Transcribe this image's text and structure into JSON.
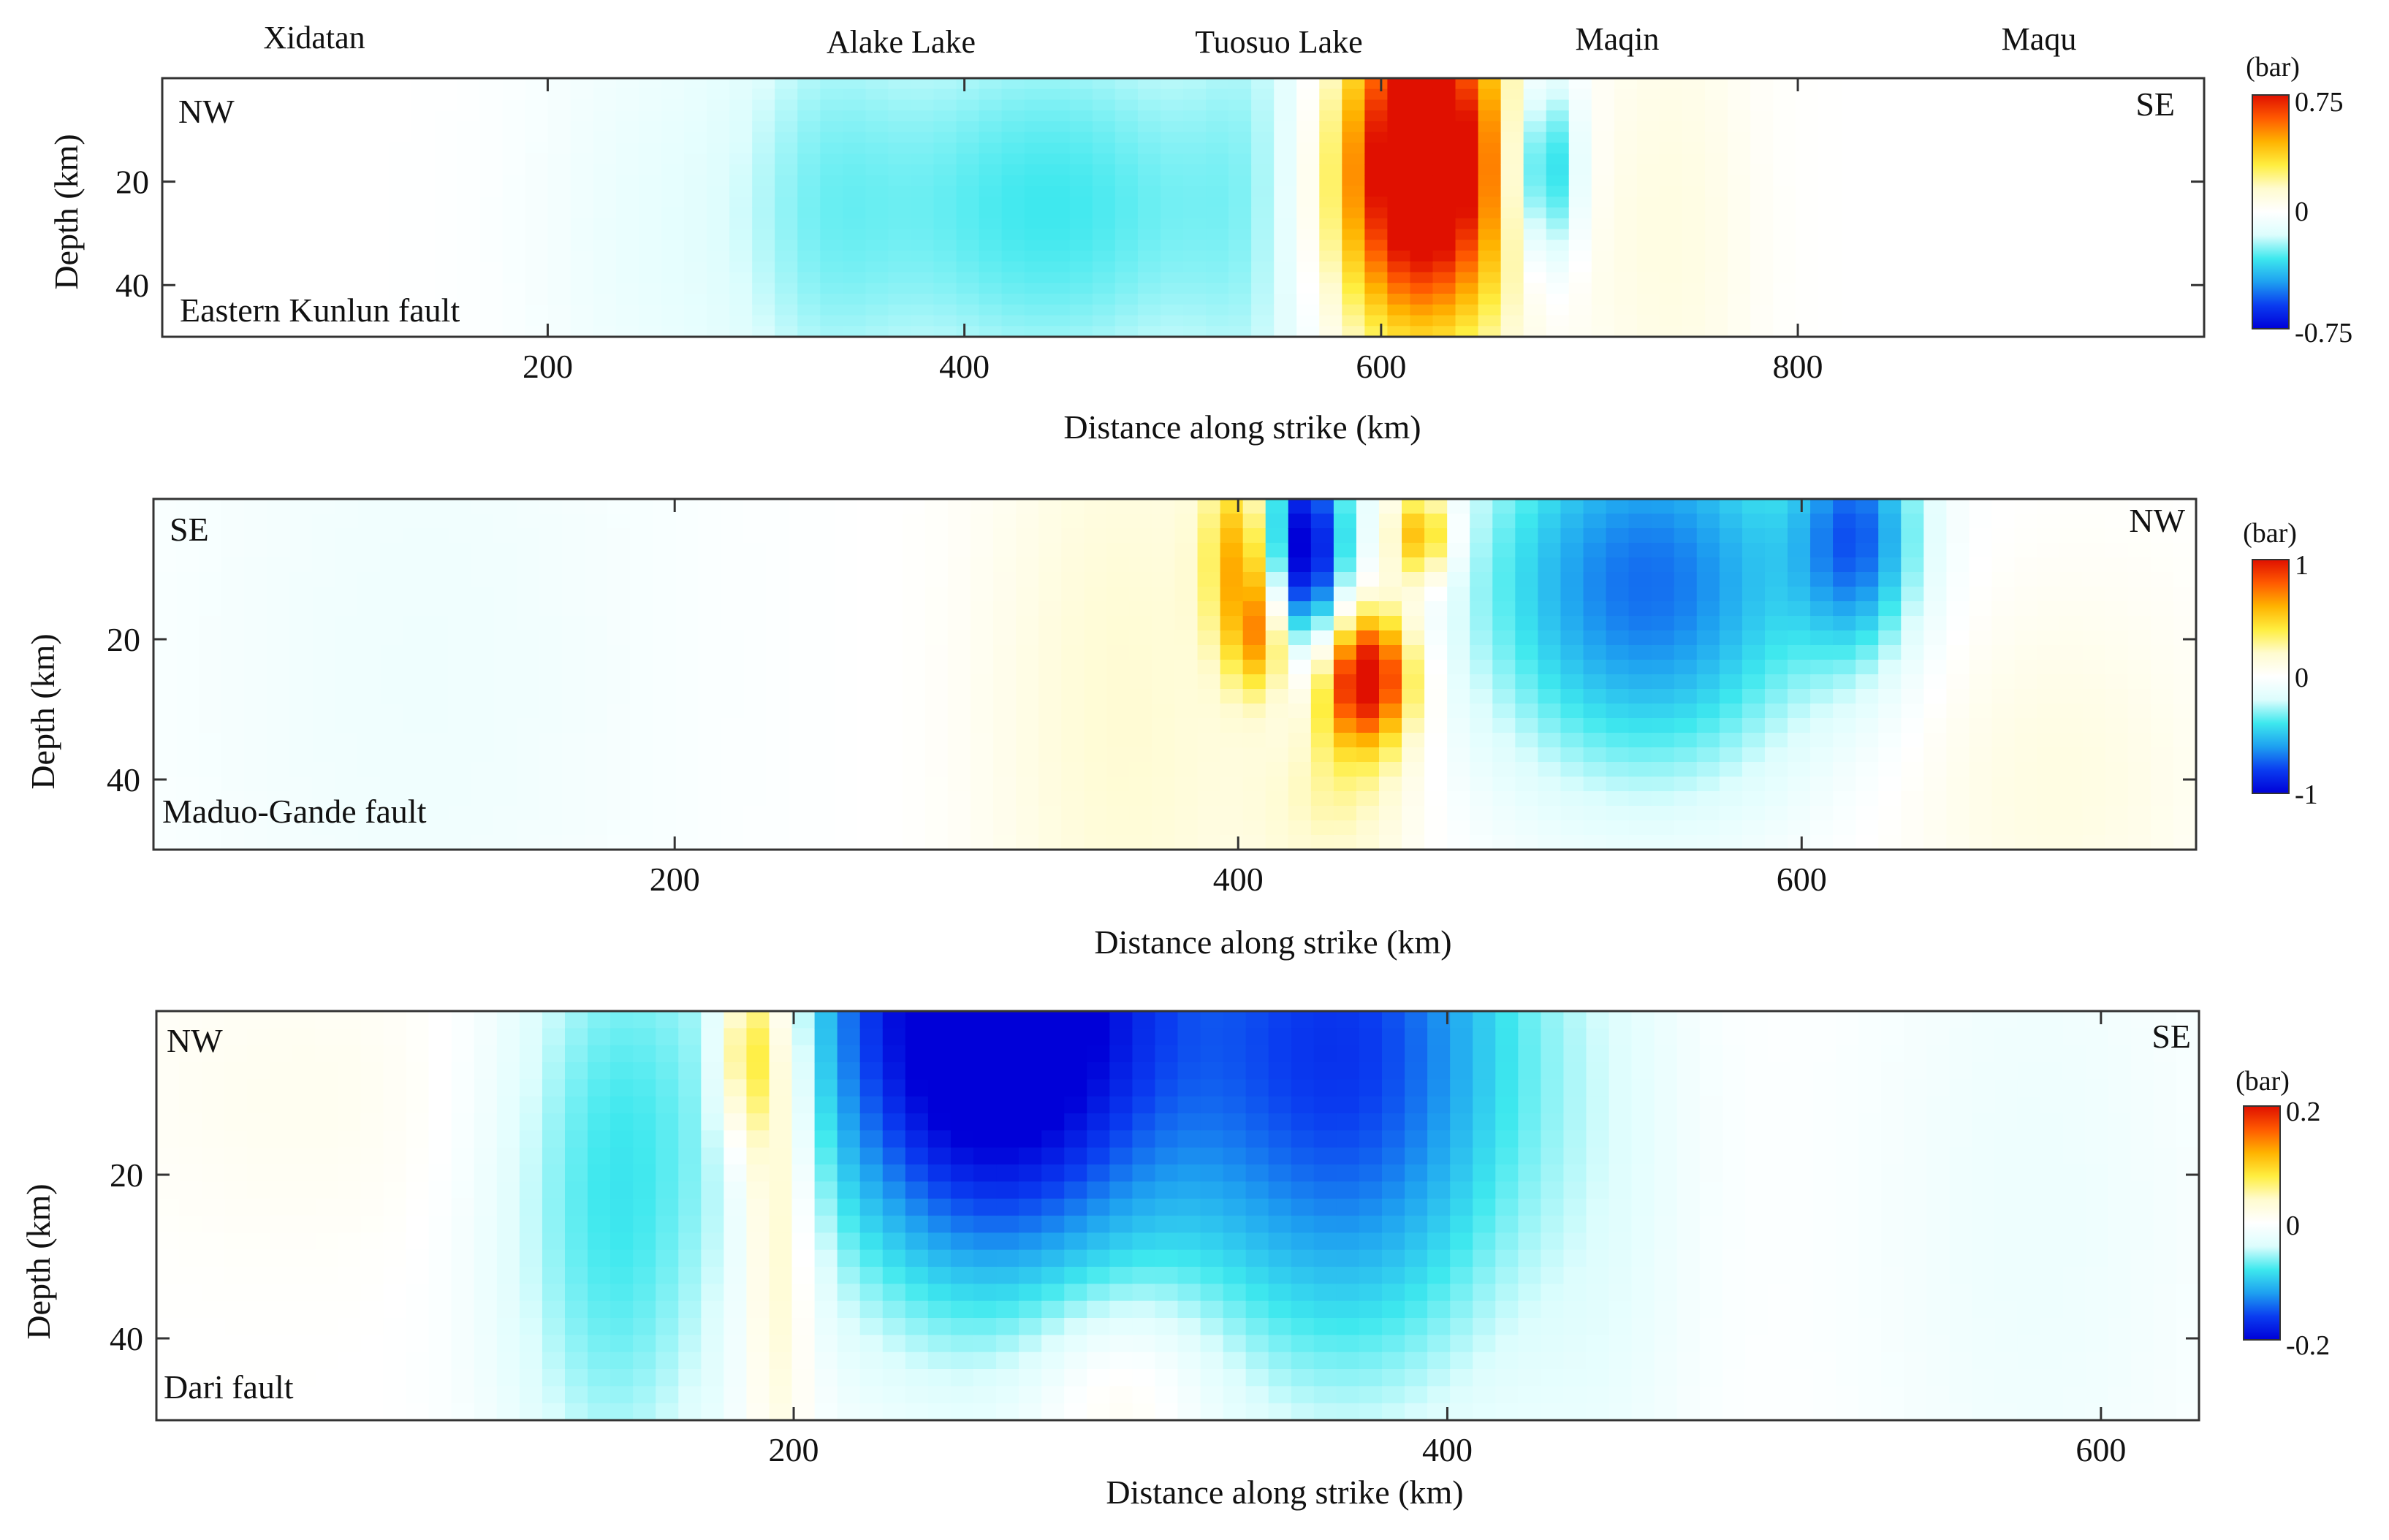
{
  "colormap_stops": [
    "#0000d8",
    "#0a3cf0",
    "#1ea0f0",
    "#3ee8ee",
    "#dcfdfd",
    "#ffffff",
    "#fffbcf",
    "#ffee40",
    "#ffb300",
    "#ff5a00",
    "#e01000"
  ],
  "chart_data": [
    {
      "type": "heatmap",
      "fault_name": "Eastern Kunlun fault",
      "xlabel": "Distance along strike (km)",
      "ylabel": "Depth (km)",
      "xlim": [
        15,
        995
      ],
      "ylim": [
        0,
        50
      ],
      "xticks": [
        200,
        400,
        600,
        800
      ],
      "yticks": [
        20,
        40
      ],
      "corner_left": "NW",
      "corner_right": "SE",
      "places": [
        {
          "name": "Xidatan",
          "x": 85
        },
        {
          "name": "Alake Lake",
          "x": 366
        },
        {
          "name": "Tuosuo Lake",
          "x": 548
        },
        {
          "name": "Maqin",
          "x": 712
        },
        {
          "name": "Maqu",
          "x": 914
        }
      ],
      "colorbar": {
        "unit": "(bar)",
        "vmin": -0.75,
        "vmax": 0.75,
        "labels": [
          "0.75",
          "0",
          "-0.75"
        ]
      },
      "blobs": [
        {
          "x": 250,
          "sx": 45,
          "z": 30,
          "sz": 40,
          "v": -0.08
        },
        {
          "x": 330,
          "sx": 30,
          "z": 25,
          "sz": 40,
          "v": -0.12
        },
        {
          "x": 440,
          "sx": 80,
          "z": 25,
          "sz": 30,
          "v": -0.3
        },
        {
          "x": 545,
          "sx": 25,
          "z": 25,
          "sz": 40,
          "v": -0.14
        },
        {
          "x": 620,
          "sx": 28,
          "z": 12,
          "sz": 22,
          "v": 0.85
        },
        {
          "x": 615,
          "sx": 40,
          "z": 30,
          "sz": 20,
          "v": 0.3
        },
        {
          "x": 678,
          "sx": 12,
          "z": 18,
          "sz": 14,
          "v": -0.5
        },
        {
          "x": 740,
          "sx": 28,
          "z": 30,
          "sz": 40,
          "v": 0.09
        }
      ]
    },
    {
      "type": "heatmap",
      "fault_name": "Maduo-Gande fault",
      "xlabel": "Distance along strike (km)",
      "ylabel": "Depth (km)",
      "xlim": [
        15,
        740
      ],
      "ylim": [
        0,
        50
      ],
      "xticks": [
        200,
        400,
        600
      ],
      "yticks": [
        20,
        40
      ],
      "corner_left": "SE",
      "corner_right": "NW",
      "colorbar": {
        "unit": "(bar)",
        "vmin": -1,
        "vmax": 1,
        "labels": [
          "1",
          "0",
          "-1"
        ]
      },
      "blobs": [
        {
          "x": 110,
          "sx": 70,
          "z": 25,
          "sz": 50,
          "v": -0.09
        },
        {
          "x": 360,
          "sx": 35,
          "z": 30,
          "sz": 40,
          "v": 0.18
        },
        {
          "x": 405,
          "sx": 10,
          "z": 8,
          "sz": 10,
          "v": 0.95
        },
        {
          "x": 420,
          "sx": 12,
          "z": 8,
          "sz": 12,
          "v": -1.3
        },
        {
          "x": 445,
          "sx": 12,
          "z": 25,
          "sz": 7,
          "v": 1.1
        },
        {
          "x": 465,
          "sx": 8,
          "z": 5,
          "sz": 5,
          "v": 0.7
        },
        {
          "x": 410,
          "sx": 8,
          "z": 20,
          "sz": 6,
          "v": 0.6
        },
        {
          "x": 435,
          "sx": 20,
          "z": 40,
          "sz": 12,
          "v": 0.25
        },
        {
          "x": 545,
          "sx": 45,
          "z": 12,
          "sz": 20,
          "v": -0.7
        },
        {
          "x": 620,
          "sx": 15,
          "z": 5,
          "sz": 12,
          "v": -0.6
        },
        {
          "x": 690,
          "sx": 40,
          "z": 40,
          "sz": 20,
          "v": 0.12
        }
      ]
    },
    {
      "type": "heatmap",
      "fault_name": "Dari fault",
      "xlabel": "Distance along strike (km)",
      "ylabel": "Depth (km)",
      "xlim": [
        5,
        630
      ],
      "ylim": [
        0,
        50
      ],
      "xticks": [
        200,
        400,
        600
      ],
      "yticks": [
        20,
        40
      ],
      "corner_left": "NW",
      "corner_right": "SE",
      "colorbar": {
        "unit": "(bar)",
        "vmin": -0.2,
        "vmax": 0.2,
        "labels": [
          "0.2",
          "0",
          "-0.2"
        ]
      },
      "blobs": [
        {
          "x": 50,
          "sx": 45,
          "z": 10,
          "sz": 14,
          "v": 0.012
        },
        {
          "x": 145,
          "sx": 25,
          "z": 22,
          "sz": 30,
          "v": -0.08
        },
        {
          "x": 195,
          "sx": 8,
          "z": 15,
          "sz": 25,
          "v": 0.09
        },
        {
          "x": 185,
          "sx": 6,
          "z": 5,
          "sz": 8,
          "v": 0.1
        },
        {
          "x": 260,
          "sx": 40,
          "z": 0,
          "sz": 24,
          "v": -0.25
        },
        {
          "x": 370,
          "sx": 40,
          "z": 5,
          "sz": 28,
          "v": -0.16
        },
        {
          "x": 300,
          "sx": 20,
          "z": 45,
          "sz": 8,
          "v": 0.04
        },
        {
          "x": 450,
          "sx": 20,
          "z": 25,
          "sz": 40,
          "v": -0.02
        },
        {
          "x": 580,
          "sx": 40,
          "z": 25,
          "sz": 40,
          "v": -0.02
        }
      ]
    }
  ]
}
